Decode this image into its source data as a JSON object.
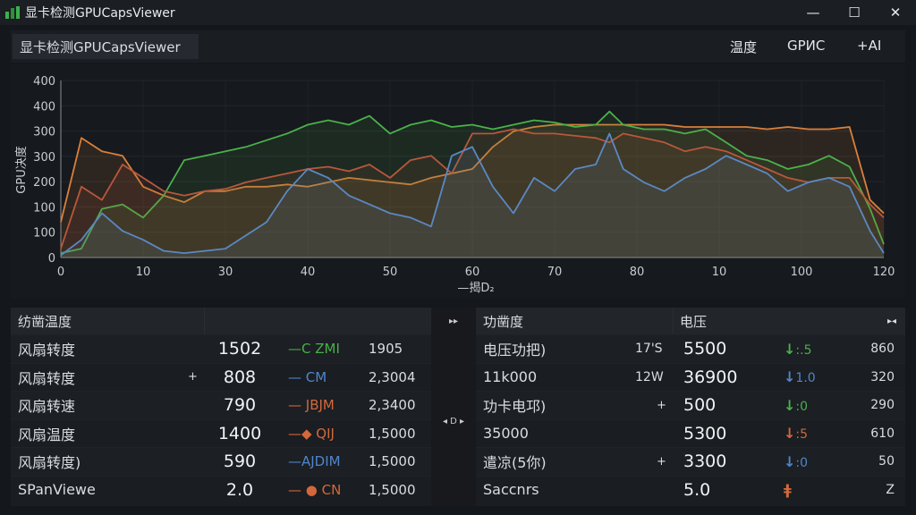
{
  "window": {
    "title": "显卡检测GPUCapsViewer",
    "minimize": "—",
    "maximize": "☐",
    "close": "✕"
  },
  "header": {
    "app_name": "显卡检测GPUCapsViewer",
    "tabs": [
      "温度",
      "GРИС",
      "+AI"
    ]
  },
  "chart_data": {
    "type": "line",
    "xlabel": "",
    "ylabel": "GPU决度",
    "x_ticks": [
      "0",
      "10",
      "30",
      "40",
      "50",
      "60",
      "70",
      "80",
      "10",
      "100",
      "120"
    ],
    "y_ticks": [
      "0",
      "100",
      "100",
      "200",
      "300",
      "300",
      "400",
      "400"
    ],
    "legend": "—揭D₂",
    "ylim": [
      0,
      400
    ],
    "x": [
      0,
      3,
      6,
      9,
      12,
      15,
      18,
      21,
      24,
      27,
      30,
      33,
      36,
      39,
      42,
      45,
      48,
      51,
      54,
      57,
      60,
      63,
      66,
      69,
      72,
      75,
      78,
      80,
      82,
      85,
      88,
      91,
      94,
      97,
      100,
      103,
      106,
      109,
      112,
      115,
      118,
      120
    ],
    "series": [
      {
        "color": "#d9803b",
        "values": [
          80,
          270,
          240,
          230,
          160,
          140,
          125,
          150,
          150,
          160,
          160,
          165,
          160,
          170,
          180,
          175,
          170,
          165,
          180,
          190,
          200,
          250,
          285,
          295,
          300,
          300,
          300,
          300,
          300,
          300,
          300,
          295,
          295,
          295,
          295,
          290,
          295,
          290,
          290,
          295,
          130,
          100
        ]
      },
      {
        "color": "#4bb04a",
        "values": [
          10,
          20,
          110,
          120,
          90,
          140,
          220,
          230,
          240,
          250,
          265,
          280,
          300,
          310,
          300,
          320,
          280,
          300,
          310,
          295,
          300,
          290,
          300,
          310,
          305,
          295,
          300,
          330,
          300,
          290,
          290,
          280,
          290,
          260,
          230,
          220,
          200,
          210,
          230,
          205,
          110,
          30
        ]
      },
      {
        "color": "#b9573b",
        "values": [
          20,
          160,
          130,
          210,
          180,
          150,
          140,
          150,
          155,
          170,
          180,
          190,
          200,
          205,
          195,
          210,
          180,
          220,
          230,
          190,
          280,
          280,
          290,
          280,
          280,
          275,
          270,
          260,
          280,
          270,
          260,
          240,
          250,
          240,
          220,
          200,
          180,
          170,
          180,
          180,
          120,
          90
        ]
      },
      {
        "color": "#5b88c3",
        "values": [
          5,
          40,
          100,
          60,
          40,
          15,
          10,
          15,
          20,
          50,
          80,
          150,
          200,
          180,
          140,
          120,
          100,
          90,
          70,
          230,
          250,
          160,
          100,
          180,
          150,
          200,
          210,
          280,
          200,
          170,
          150,
          180,
          200,
          230,
          210,
          190,
          150,
          170,
          180,
          160,
          60,
          10
        ]
      }
    ]
  },
  "left_table": {
    "header": "纺凿温度",
    "header_icon": "▸▸",
    "rows": [
      {
        "label": "风扇转度",
        "plus": "",
        "value": "1502",
        "tag": "—C ZMI",
        "tag_color": "#47b04a",
        "num": "1905"
      },
      {
        "label": "风扇转度",
        "plus": "+",
        "value": "808",
        "tag": "— CM",
        "tag_color": "#4f86cc",
        "num": "2,3004"
      },
      {
        "label": "风扇转速",
        "plus": "",
        "value": "790",
        "tag": "— JBJM",
        "tag_color": "#d2683c",
        "num": "2,3400"
      },
      {
        "label": "风扇温度",
        "plus": "",
        "value": "1400",
        "tag": "—◆ QIJ",
        "tag_color": "#d2683c",
        "num": "1,5000"
      },
      {
        "label": "风扇转度)",
        "plus": "",
        "value": "590",
        "tag": "—AJDIM",
        "tag_color": "#4f86cc",
        "num": "1,5000"
      },
      {
        "label": "SPanViewe",
        "plus": "",
        "value": "2.0",
        "tag": "— ● CN",
        "tag_color": "#d2683c",
        "num": "1,5000"
      }
    ]
  },
  "mid_strip": {
    "top_icon": "▸▸",
    "mid_icon": "◂ D ▸"
  },
  "right_table": {
    "header": "功凿度",
    "header2": "电压",
    "header_icon": "▸◂",
    "rows": [
      {
        "label": "电压功把)",
        "unit": "17'S",
        "plus": "",
        "value": "5500",
        "arrow": "↓",
        "arrow_text": ":.5",
        "arrow_color": "#47b04a",
        "num": "860"
      },
      {
        "label": "11k000",
        "unit": "12W",
        "plus": "",
        "value": "36900",
        "arrow": "↓",
        "arrow_text": "1.0",
        "arrow_color": "#4f86cc",
        "num": "320"
      },
      {
        "label": "功卡电邛)",
        "unit": "",
        "plus": "+",
        "value": "500",
        "arrow": "↓",
        "arrow_text": ":0",
        "arrow_color": "#47b04a",
        "num": "290"
      },
      {
        "label": "35000",
        "unit": "",
        "plus": "",
        "value": "5300",
        "arrow": "↓",
        "arrow_text": ":5",
        "arrow_color": "#d2683c",
        "num": "610"
      },
      {
        "label": "遣凉(5你)",
        "unit": "",
        "plus": "+",
        "value": "3300",
        "arrow": "↓",
        "arrow_text": ":0",
        "arrow_color": "#4f86cc",
        "num": "50"
      },
      {
        "label": "Saccnrs",
        "unit": "",
        "plus": "",
        "value": "5.0",
        "arrow": "ǂ",
        "arrow_text": "",
        "arrow_color": "#d2683c",
        "num": "Z"
      }
    ]
  }
}
